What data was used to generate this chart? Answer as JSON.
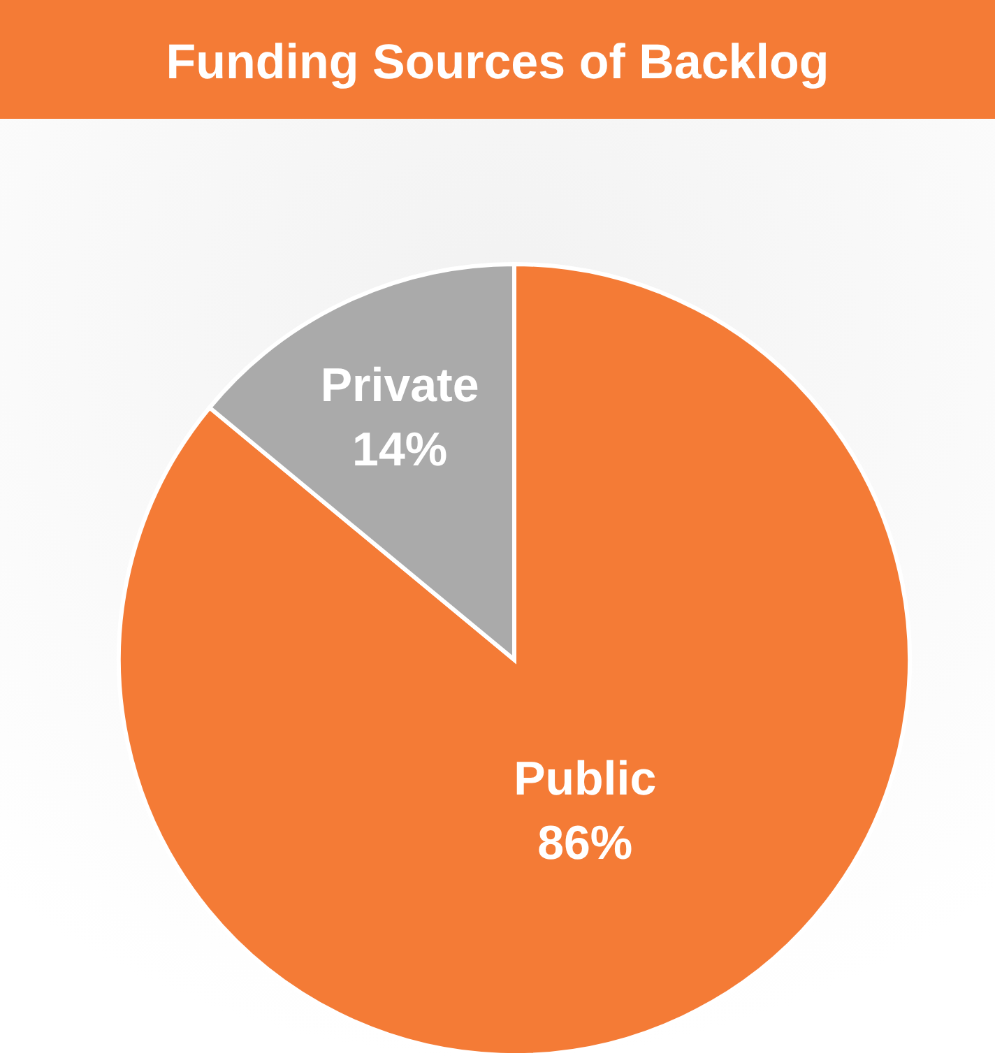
{
  "chart_data": {
    "type": "pie",
    "title": "Funding Sources of Backlog",
    "categories": [
      "Public",
      "Private"
    ],
    "values": [
      86,
      14
    ],
    "colors": [
      "#f47b36",
      "#aaaaaa"
    ],
    "value_labels": [
      "86%",
      "14%"
    ]
  }
}
